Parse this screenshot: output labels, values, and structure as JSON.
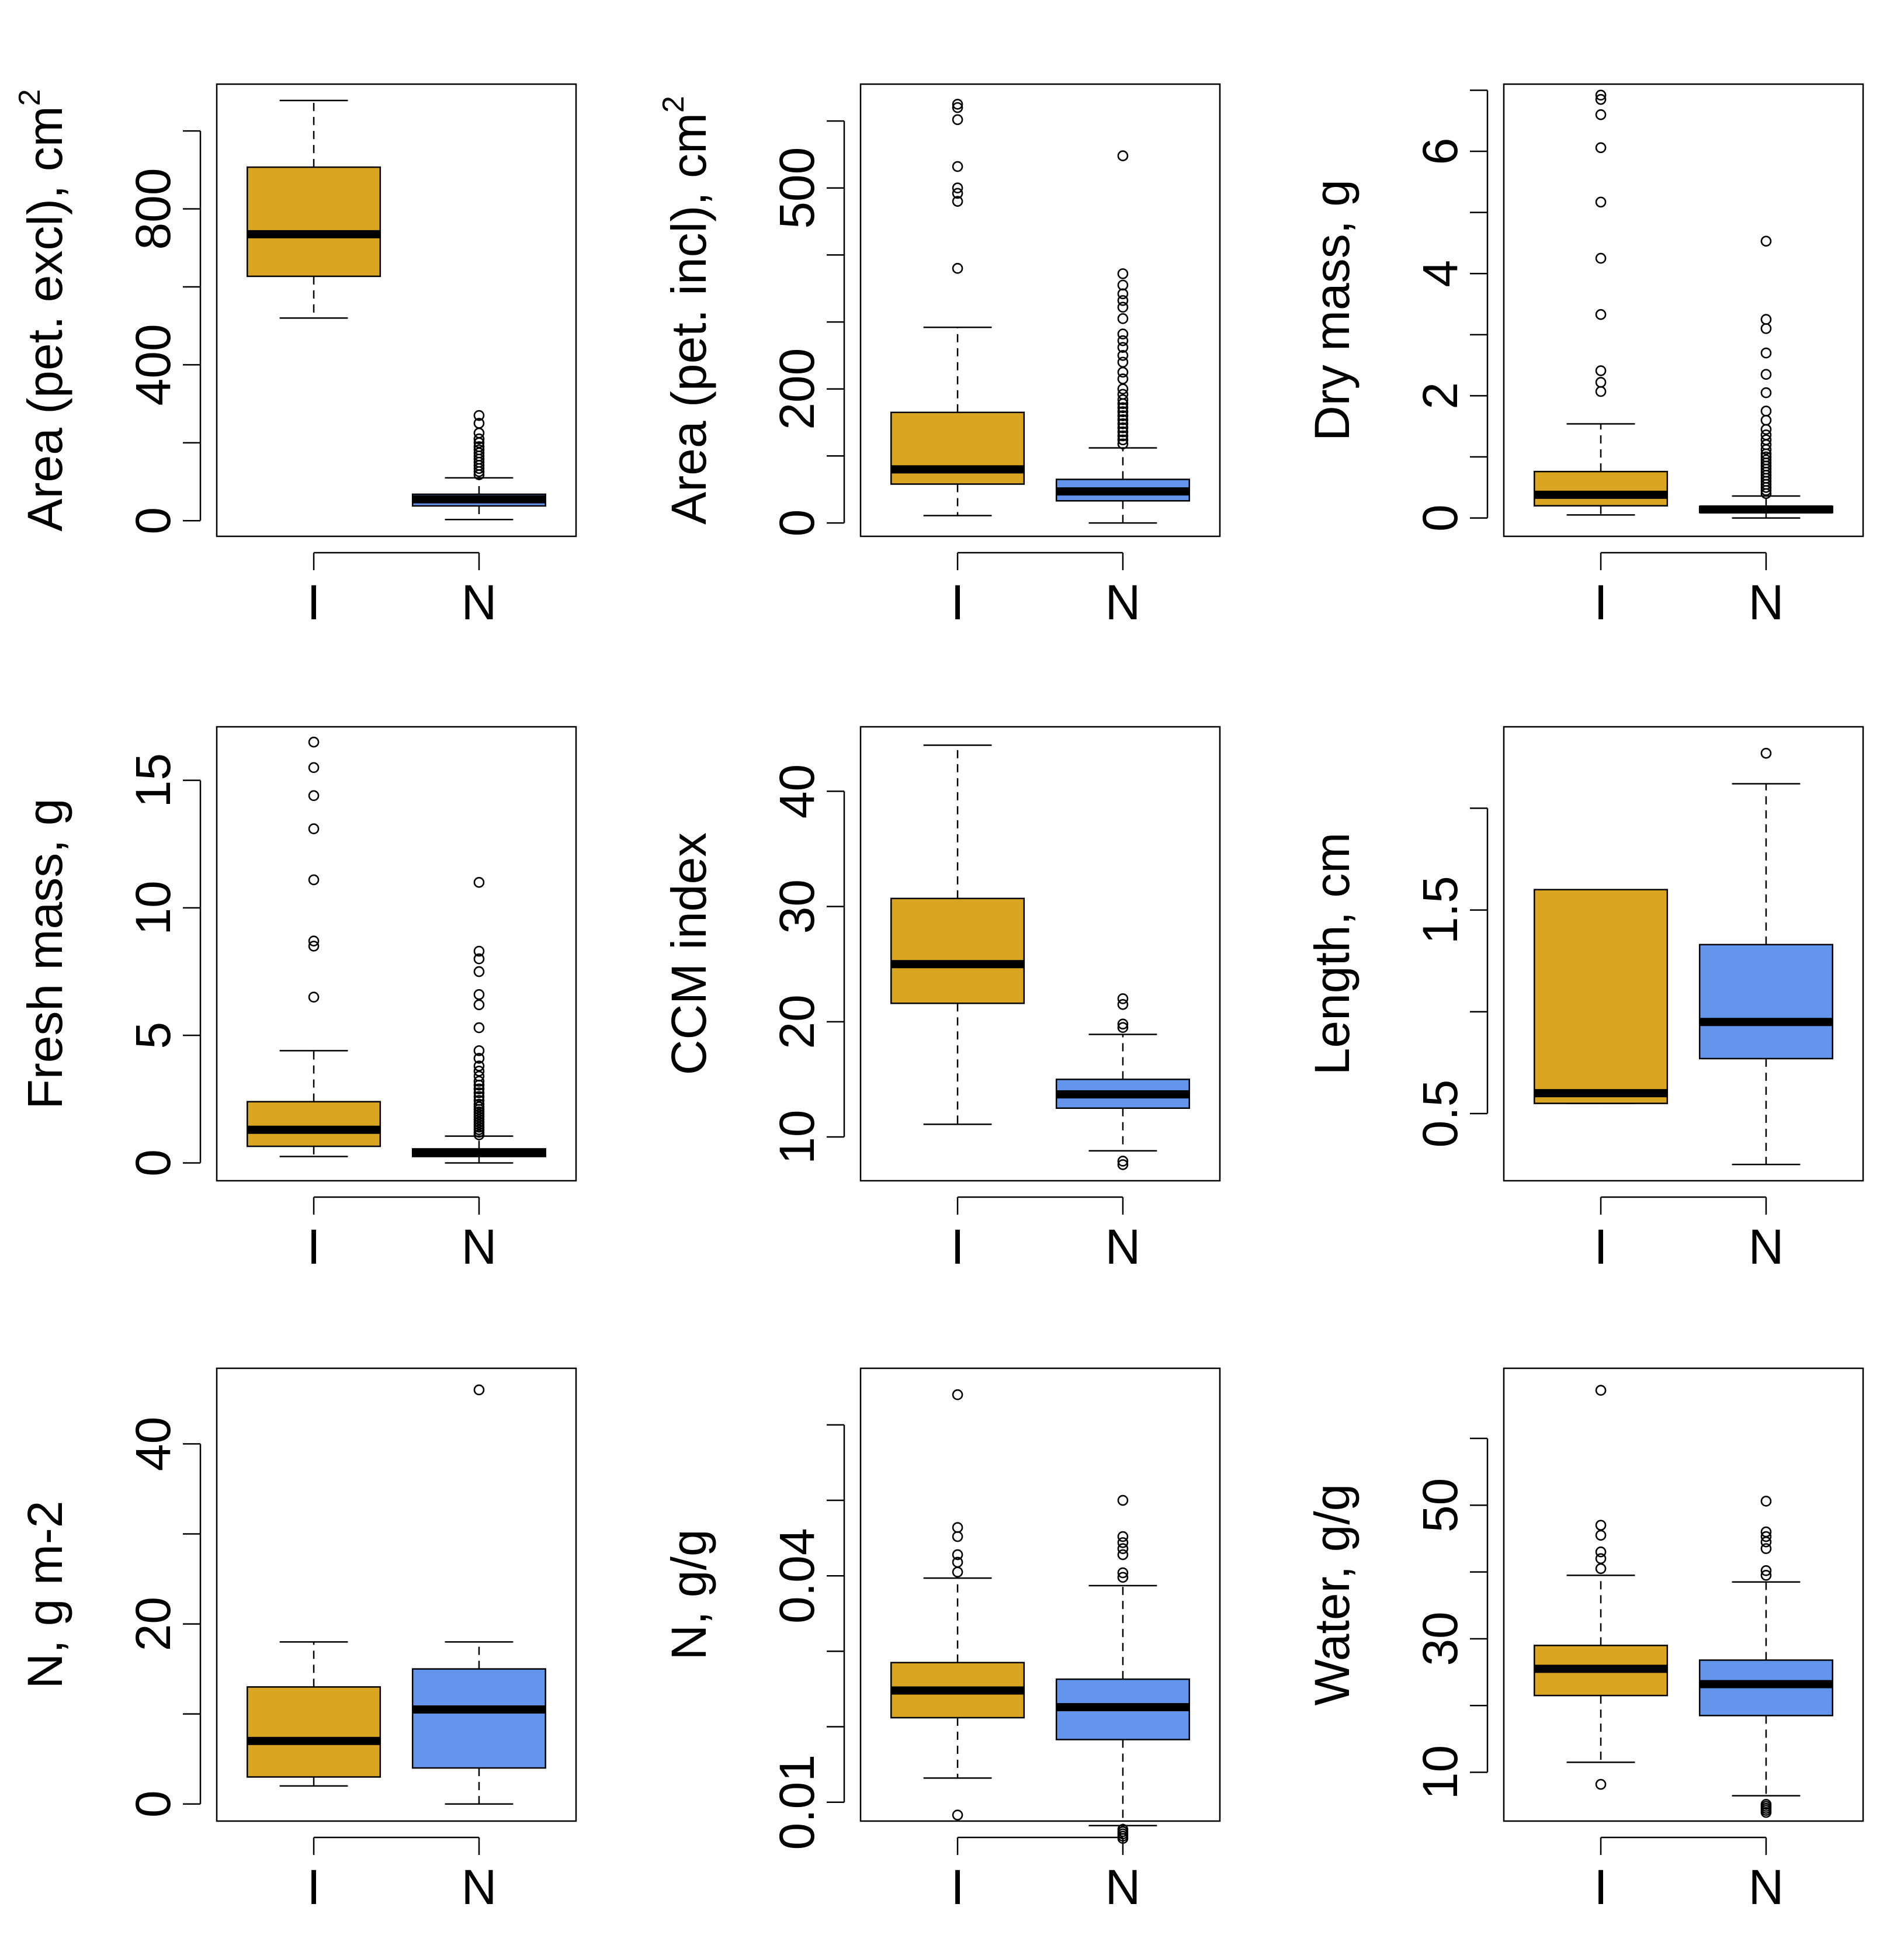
{
  "figure": {
    "colors": {
      "I": "#DAA520",
      "N": "#6495ED",
      "median": "#000000",
      "frame": "#000000"
    }
  },
  "chart_data": [
    {
      "type": "boxplot",
      "ylabel": "Area (pet. excl), cm",
      "ylabel_sup": "2",
      "categories": [
        "I",
        "N"
      ],
      "ylim": [
        -40,
        1120
      ],
      "yticks": [
        0,
        200,
        400,
        600,
        800,
        1000
      ],
      "ytick_labels": [
        "0",
        "",
        "400",
        "",
        "800",
        ""
      ],
      "boxes": [
        {
          "group": "I",
          "whisker_low": 520,
          "q1": 627,
          "median": 735,
          "q3": 907,
          "whisker_high": 1078,
          "outliers": []
        },
        {
          "group": "N",
          "whisker_low": 3,
          "q1": 38,
          "median": 55,
          "q3": 68,
          "whisker_high": 110,
          "outliers": [
            118,
            126,
            134,
            142,
            150,
            158,
            166,
            174,
            182,
            190,
            200,
            210,
            225,
            250,
            270
          ]
        }
      ]
    },
    {
      "type": "boxplot",
      "ylabel": "Area (pet. incl), cm",
      "ylabel_sup": "2",
      "categories": [
        "I",
        "N"
      ],
      "ylim": [
        -20,
        655
      ],
      "yticks": [
        0,
        100,
        200,
        300,
        400,
        500,
        600
      ],
      "ytick_labels": [
        "0",
        "",
        "200",
        "",
        "",
        "500",
        ""
      ],
      "boxes": [
        {
          "group": "I",
          "whisker_low": 11,
          "q1": 58,
          "median": 80,
          "q3": 165,
          "whisker_high": 292,
          "outliers": [
            380,
            480,
            492,
            500,
            532,
            602,
            620,
            625
          ]
        },
        {
          "group": "N",
          "whisker_low": 0,
          "q1": 33,
          "median": 47,
          "q3": 65,
          "whisker_high": 112,
          "outliers": [
            118,
            124,
            130,
            136,
            142,
            148,
            154,
            160,
            166,
            172,
            178,
            184,
            192,
            200,
            215,
            225,
            240,
            250,
            262,
            272,
            282,
            305,
            322,
            332,
            342,
            355,
            372,
            548
          ]
        }
      ]
    },
    {
      "type": "boxplot",
      "ylabel": "Dry mass, g",
      "ylabel_sup": "",
      "categories": [
        "I",
        "N"
      ],
      "ylim": [
        -0.3,
        7.1
      ],
      "yticks": [
        0,
        1,
        2,
        3,
        4,
        5,
        6,
        7
      ],
      "ytick_labels": [
        "0",
        "",
        "2",
        "",
        "4",
        "",
        "6",
        ""
      ],
      "boxes": [
        {
          "group": "I",
          "whisker_low": 0.05,
          "q1": 0.2,
          "median": 0.38,
          "q3": 0.76,
          "whisker_high": 1.54,
          "outliers": [
            2.07,
            2.22,
            2.41,
            3.33,
            4.25,
            5.17,
            6.06,
            6.6,
            6.85,
            6.92
          ]
        },
        {
          "group": "N",
          "whisker_low": 0.0,
          "q1": 0.09,
          "median": 0.14,
          "q3": 0.19,
          "whisker_high": 0.36,
          "outliers": [
            0.4,
            0.45,
            0.5,
            0.55,
            0.6,
            0.65,
            0.7,
            0.75,
            0.8,
            0.85,
            0.9,
            0.95,
            1.0,
            1.05,
            1.12,
            1.2,
            1.28,
            1.36,
            1.45,
            1.6,
            1.75,
            2.05,
            2.35,
            2.7,
            3.1,
            3.25,
            4.53
          ]
        }
      ]
    },
    {
      "type": "boxplot",
      "ylabel": "Fresh mass, g",
      "ylabel_sup": "",
      "categories": [
        "I",
        "N"
      ],
      "ylim": [
        -0.7,
        17.1
      ],
      "yticks": [
        0,
        5,
        10,
        15
      ],
      "ytick_labels": [
        "0",
        "5",
        "10",
        "15"
      ],
      "boxes": [
        {
          "group": "I",
          "whisker_low": 0.25,
          "q1": 0.65,
          "median": 1.3,
          "q3": 2.4,
          "whisker_high": 4.4,
          "outliers": [
            6.5,
            8.5,
            8.7,
            11.1,
            13.1,
            14.4,
            15.5,
            16.5
          ]
        },
        {
          "group": "N",
          "whisker_low": 0.0,
          "q1": 0.25,
          "median": 0.4,
          "q3": 0.55,
          "whisker_high": 1.05,
          "outliers": [
            1.1,
            1.2,
            1.3,
            1.4,
            1.5,
            1.6,
            1.7,
            1.8,
            1.9,
            2.0,
            2.1,
            2.2,
            2.3,
            2.45,
            2.6,
            2.75,
            2.9,
            3.05,
            3.2,
            3.4,
            3.6,
            3.8,
            4.1,
            4.4,
            5.3,
            6.2,
            6.6,
            7.5,
            8.0,
            8.3,
            11.0
          ]
        }
      ]
    },
    {
      "type": "boxplot",
      "ylabel": "CCM index",
      "ylabel_sup": "",
      "categories": [
        "I",
        "N"
      ],
      "ylim": [
        6.2,
        45.6
      ],
      "yticks": [
        10,
        20,
        30,
        40
      ],
      "ytick_labels": [
        "10",
        "20",
        "30",
        "40"
      ],
      "boxes": [
        {
          "group": "I",
          "whisker_low": 11.1,
          "q1": 21.6,
          "median": 25.0,
          "q3": 30.7,
          "whisker_high": 44.0,
          "outliers": []
        },
        {
          "group": "N",
          "whisker_low": 8.8,
          "q1": 12.5,
          "median": 13.7,
          "q3": 15.0,
          "whisker_high": 18.9,
          "outliers": [
            7.6,
            7.9,
            19.5,
            19.8,
            21.5,
            22.0
          ]
        }
      ]
    },
    {
      "type": "boxplot",
      "ylabel": "Length, cm",
      "ylabel_sup": "",
      "categories": [
        "I",
        "N"
      ],
      "ylim": [
        0.17,
        2.4
      ],
      "yticks": [
        0.5,
        1.0,
        1.5,
        2.0
      ],
      "ytick_labels": [
        "0.5",
        "",
        "1.5",
        ""
      ],
      "boxes": [
        {
          "group": "I",
          "whisker_low": 0.55,
          "q1": 0.55,
          "median": 0.6,
          "q3": 1.6,
          "whisker_high": 1.6,
          "outliers": []
        },
        {
          "group": "N",
          "whisker_low": 0.25,
          "q1": 0.77,
          "median": 0.95,
          "q3": 1.33,
          "whisker_high": 2.12,
          "outliers": [
            2.27
          ]
        }
      ]
    },
    {
      "type": "boxplot",
      "ylabel": "N, g m-2",
      "ylabel_sup": "",
      "categories": [
        "I",
        "N"
      ],
      "ylim": [
        -1.9,
        48.4
      ],
      "yticks": [
        0,
        10,
        20,
        30,
        40
      ],
      "ytick_labels": [
        "0",
        "",
        "20",
        "",
        "40"
      ],
      "boxes": [
        {
          "group": "I",
          "whisker_low": 2.0,
          "q1": 3.0,
          "median": 7.0,
          "q3": 13.0,
          "whisker_high": 18.0,
          "outliers": []
        },
        {
          "group": "N",
          "whisker_low": 0.0,
          "q1": 4.0,
          "median": 10.5,
          "q3": 15.0,
          "whisker_high": 18.0,
          "outliers": [
            46.0
          ]
        }
      ]
    },
    {
      "type": "boxplot",
      "ylabel": "N, g/g",
      "ylabel_sup": "",
      "categories": [
        "I",
        "N"
      ],
      "ylim": [
        0.0075,
        0.0675
      ],
      "yticks": [
        0.01,
        0.02,
        0.03,
        0.04,
        0.05,
        0.06
      ],
      "ytick_labels": [
        "0.01",
        "",
        "",
        "0.04",
        "",
        ""
      ],
      "boxes": [
        {
          "group": "I",
          "whisker_low": 0.0132,
          "q1": 0.0212,
          "median": 0.0248,
          "q3": 0.0285,
          "whisker_high": 0.0397,
          "outliers": [
            0.0083,
            0.0405,
            0.0418,
            0.0428,
            0.0452,
            0.0464,
            0.064
          ]
        },
        {
          "group": "N",
          "whisker_low": 0.0069,
          "q1": 0.0183,
          "median": 0.0226,
          "q3": 0.0263,
          "whisker_high": 0.0387,
          "outliers": [
            0.0052,
            0.0055,
            0.0058,
            0.0061,
            0.0064,
            0.0398,
            0.0404,
            0.0428,
            0.0436,
            0.0444,
            0.0452,
            0.05
          ]
        }
      ]
    },
    {
      "type": "boxplot",
      "ylabel": "Water, g/g",
      "ylabel_sup": "",
      "categories": [
        "I",
        "N"
      ],
      "ylim": [
        2.7,
        70.5
      ],
      "yticks": [
        10,
        20,
        30,
        40,
        50,
        60
      ],
      "ytick_labels": [
        "10",
        "",
        "30",
        "",
        "50",
        ""
      ],
      "boxes": [
        {
          "group": "I",
          "whisker_low": 11.5,
          "q1": 21.5,
          "median": 25.5,
          "q3": 29.0,
          "whisker_high": 39.5,
          "outliers": [
            8.2,
            40.5,
            42.0,
            43.0,
            45.5,
            47.0,
            67.2
          ]
        },
        {
          "group": "N",
          "whisker_low": 6.5,
          "q1": 18.5,
          "median": 23.2,
          "q3": 26.8,
          "whisker_high": 38.5,
          "outliers": [
            4.0,
            4.3,
            4.6,
            4.9,
            5.2,
            39.5,
            40.2,
            43.5,
            44.5,
            45.3,
            46.0,
            50.6
          ]
        }
      ]
    }
  ]
}
